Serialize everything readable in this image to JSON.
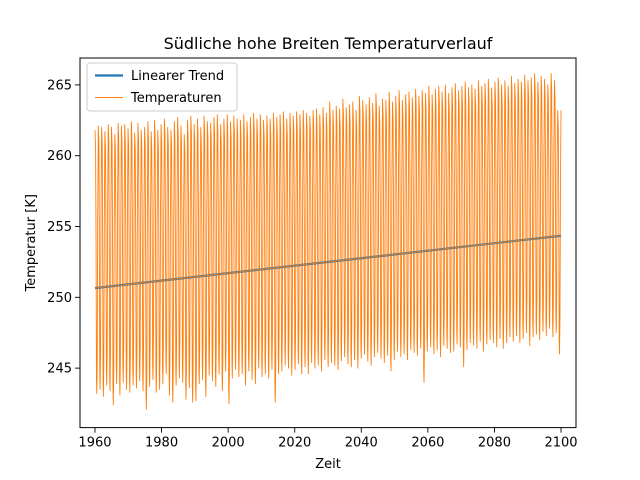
{
  "chart_data": {
    "type": "line",
    "title": "Südliche hohe Breiten Temperaturverlauf",
    "xlabel": "Zeit",
    "ylabel": "Temperatur [K]",
    "xlim": [
      1955.5,
      2104.5
    ],
    "ylim": [
      240.8,
      266.9
    ],
    "xticks": [
      1960,
      1980,
      2000,
      2020,
      2040,
      2060,
      2080,
      2100
    ],
    "yticks": [
      245,
      250,
      255,
      260,
      265
    ],
    "grid": false,
    "legend_position": "top-left",
    "legend": [
      "Linearer Trend",
      "Temperaturen"
    ],
    "series": [
      {
        "name": "Linearer Trend",
        "color": "#1f77b4",
        "x": [
          1960,
          2100
        ],
        "values": [
          250.65,
          254.35
        ]
      },
      {
        "name": "Temperaturen",
        "color": "#ff7f0e",
        "start_year": 1960,
        "end_year": 2100,
        "annual_min": [
          243.2,
          243.5,
          243.0,
          243.8,
          243.4,
          242.4,
          243.9,
          243.1,
          244.0,
          243.5,
          243.3,
          243.8,
          243.6,
          244.1,
          243.4,
          242.1,
          243.7,
          244.2,
          243.3,
          243.5,
          243.9,
          244.6,
          243.1,
          242.6,
          243.8,
          244.3,
          244.0,
          242.8,
          243.6,
          242.6,
          242.7,
          243.9,
          244.2,
          243.0,
          244.5,
          244.1,
          243.7,
          244.6,
          243.4,
          244.8,
          242.5,
          244.3,
          244.9,
          244.4,
          244.6,
          243.8,
          244.8,
          244.2,
          243.9,
          245.0,
          244.4,
          244.6,
          244.3,
          244.9,
          242.6,
          244.6,
          244.8,
          245.2,
          245.0,
          244.5,
          244.9,
          245.3,
          244.6,
          245.1,
          244.6,
          245.4,
          245.0,
          245.2,
          244.8,
          245.6,
          245.1,
          245.4,
          245.2,
          244.9,
          245.5,
          245.8,
          245.3,
          245.1,
          245.6,
          245.0,
          245.7,
          246.0,
          245.5,
          245.2,
          245.8,
          246.1,
          245.7,
          245.4,
          245.9,
          244.8,
          245.6,
          246.2,
          245.8,
          246.0,
          245.6,
          246.3,
          246.1,
          245.9,
          246.4,
          244.0,
          246.2,
          246.5,
          246.0,
          246.3,
          245.8,
          246.6,
          246.4,
          246.1,
          246.2,
          246.7,
          246.5,
          245.1,
          246.3,
          246.8,
          246.6,
          246.4,
          246.9,
          246.2,
          246.7,
          247.0,
          246.8,
          246.5,
          247.1,
          246.4,
          246.8,
          247.2,
          246.9,
          247.3,
          246.8,
          247.1,
          247.5,
          246.6,
          247.2,
          247.4,
          247.0,
          247.6,
          247.3,
          247.8,
          247.2,
          247.5,
          246.0
        ],
        "annual_max": [
          261.8,
          262.1,
          262.0,
          261.7,
          262.2,
          262.0,
          261.5,
          262.3,
          262.1,
          262.2,
          261.9,
          262.4,
          261.6,
          262.3,
          261.8,
          262.0,
          262.4,
          261.7,
          262.5,
          261.8,
          262.2,
          262.6,
          262.0,
          261.8,
          262.4,
          262.7,
          262.1,
          261.5,
          262.5,
          262.8,
          262.2,
          262.6,
          262.0,
          262.8,
          262.4,
          262.3,
          262.7,
          262.9,
          262.2,
          262.6,
          262.9,
          262.4,
          262.8,
          262.6,
          262.5,
          262.9,
          262.4,
          262.7,
          263.0,
          262.6,
          262.9,
          262.5,
          262.8,
          262.6,
          263.0,
          262.7,
          262.9,
          263.1,
          262.6,
          263.0,
          262.8,
          263.1,
          262.9,
          263.2,
          263.0,
          262.8,
          263.2,
          263.3,
          262.9,
          263.4,
          263.0,
          263.8,
          263.2,
          263.5,
          263.3,
          264.0,
          263.4,
          263.6,
          263.8,
          263.2,
          264.2,
          263.9,
          263.6,
          264.1,
          263.7,
          264.4,
          263.5,
          264.0,
          263.9,
          264.5,
          263.8,
          264.2,
          264.6,
          263.9,
          264.3,
          264.5,
          264.1,
          264.7,
          264.2,
          264.6,
          264.4,
          264.9,
          264.3,
          264.7,
          264.9,
          264.5,
          265.0,
          264.4,
          264.8,
          265.1,
          264.6,
          264.9,
          265.2,
          264.8,
          265.0,
          264.7,
          265.3,
          264.9,
          265.1,
          265.4,
          264.8,
          265.2,
          265.5,
          265.0,
          265.3,
          264.9,
          265.6,
          265.1,
          265.4,
          265.2,
          265.7,
          265.3,
          265.5,
          265.8,
          265.2,
          265.6,
          265.4,
          265.0,
          265.8,
          265.3,
          263.2
        ]
      }
    ]
  }
}
